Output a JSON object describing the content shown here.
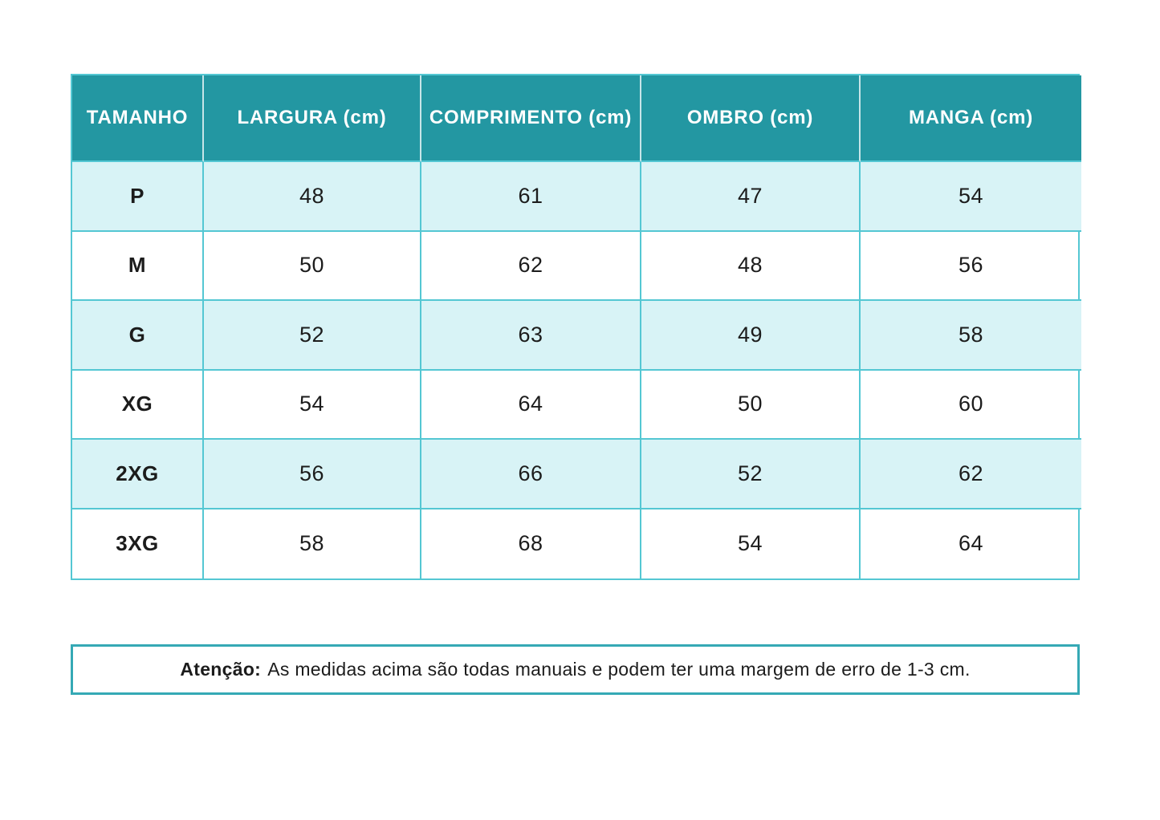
{
  "table": {
    "headers": [
      "TAMANHO",
      "LARGURA (cm)",
      "COMPRIMENTO (cm)",
      "OMBRO (cm)",
      "MANGA (cm)"
    ],
    "rows": [
      {
        "cells": [
          "P",
          "48",
          "61",
          "47",
          "54"
        ]
      },
      {
        "cells": [
          "M",
          "50",
          "62",
          "48",
          "56"
        ]
      },
      {
        "cells": [
          "G",
          "52",
          "63",
          "49",
          "58"
        ]
      },
      {
        "cells": [
          "XG",
          "54",
          "64",
          "50",
          "60"
        ]
      },
      {
        "cells": [
          "2XG",
          "56",
          "66",
          "52",
          "62"
        ]
      },
      {
        "cells": [
          "3XG",
          "58",
          "68",
          "54",
          "64"
        ]
      }
    ]
  },
  "note": {
    "label": "Atenção:",
    "text": "As medidas acima são todas manuais e podem ter uma margem de erro de 1-3 cm."
  },
  "colors": {
    "header_bg": "#2397A2",
    "header_text": "#FFFFFF",
    "row_alt_bg": "#D8F3F6",
    "row_bg": "#FFFFFF",
    "grid_border": "#54C7D3",
    "note_border": "#35A9B5",
    "body_text": "#1C1C1C"
  }
}
